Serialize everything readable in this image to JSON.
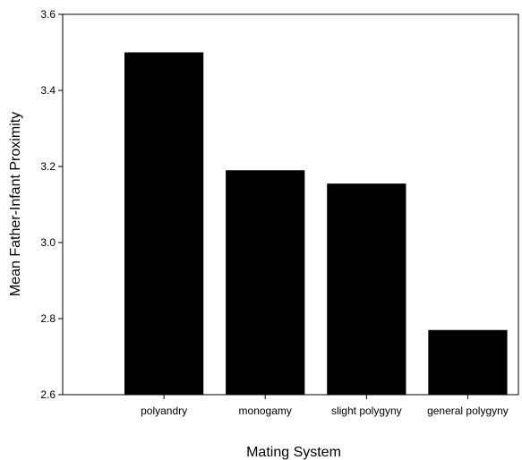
{
  "chart_data": {
    "type": "bar",
    "title": "",
    "xlabel": "Mating System",
    "ylabel": "Mean Father-Infant Proximity",
    "categories": [
      "polyandry",
      "monogamy",
      "slight polygyny",
      "general polygyny"
    ],
    "values": [
      3.5,
      3.19,
      3.155,
      2.77
    ],
    "ylim": [
      2.6,
      3.6
    ],
    "yticks": [
      2.6,
      2.8,
      3.0,
      3.2,
      3.4,
      3.6
    ],
    "ytick_labels": [
      "2.6",
      "2.8",
      "3.0",
      "3.2",
      "3.4",
      "3.6"
    ],
    "bar_color": "#000000",
    "grid": false,
    "legend": "none"
  }
}
